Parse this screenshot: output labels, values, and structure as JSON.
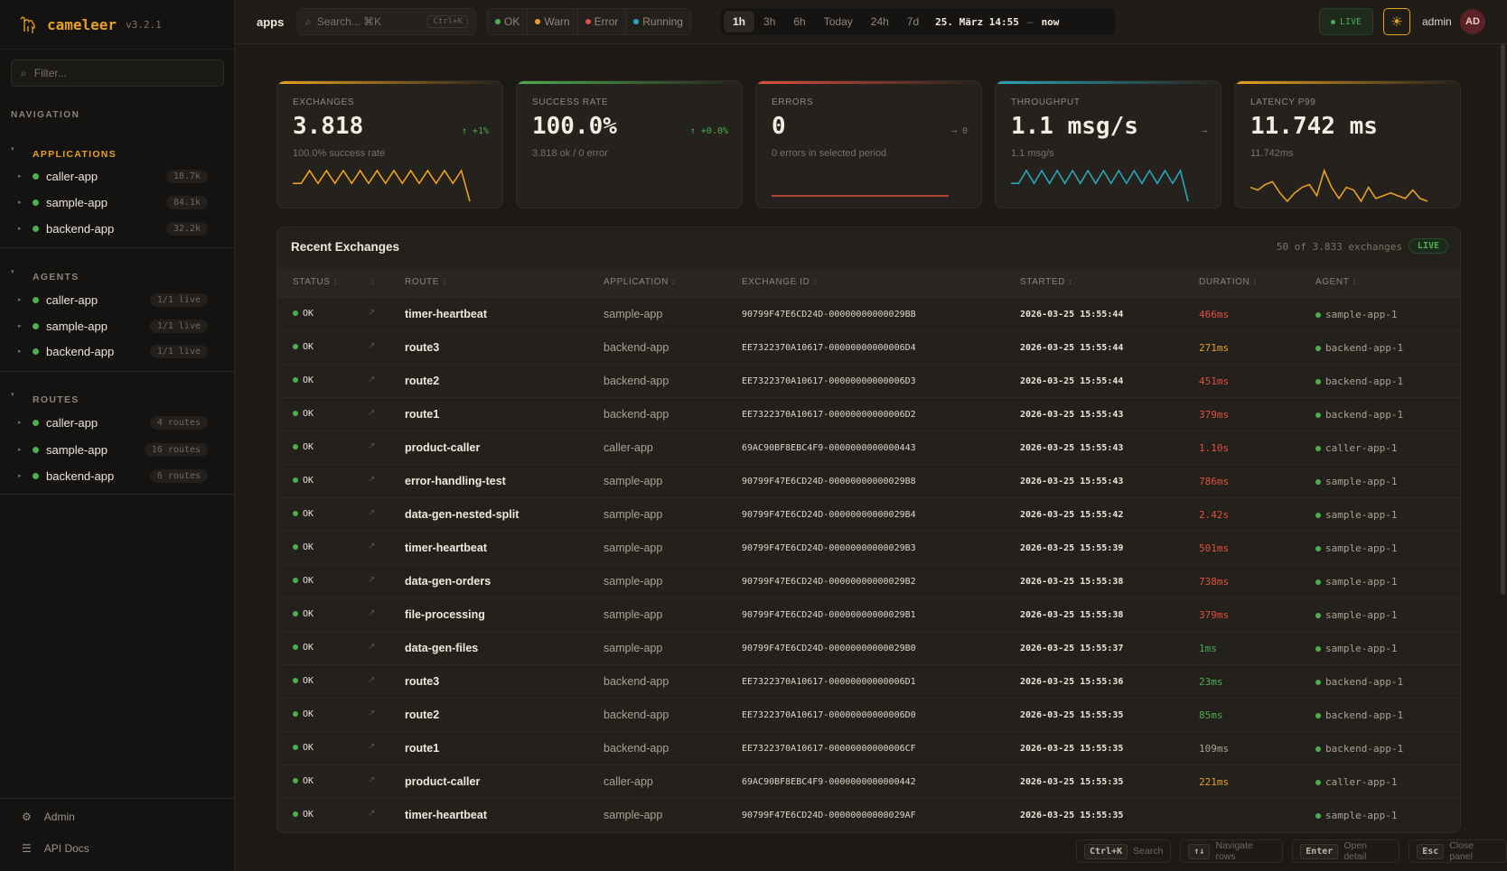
{
  "brand": {
    "name": "cameleer",
    "version": "v3.2.1"
  },
  "sidebar": {
    "filter_placeholder": "Filter...",
    "nav_title": "NAVIGATION",
    "groups": [
      {
        "title": "APPLICATIONS",
        "items": [
          {
            "label": "caller-app",
            "badge": "18.7k"
          },
          {
            "label": "sample-app",
            "badge": "84.1k"
          },
          {
            "label": "backend-app",
            "badge": "32.2k"
          }
        ]
      },
      {
        "title": "AGENTS",
        "items": [
          {
            "label": "caller-app",
            "badge": "1/1 live"
          },
          {
            "label": "sample-app",
            "badge": "1/1 live"
          },
          {
            "label": "backend-app",
            "badge": "1/1 live"
          }
        ]
      },
      {
        "title": "ROUTES",
        "items": [
          {
            "label": "caller-app",
            "badge": "4 routes"
          },
          {
            "label": "sample-app",
            "badge": "16 routes"
          },
          {
            "label": "backend-app",
            "badge": "6 routes"
          }
        ]
      }
    ],
    "footer": [
      {
        "label": "Admin",
        "icon": "gear-icon"
      },
      {
        "label": "API Docs",
        "icon": "menu-icon"
      }
    ]
  },
  "topbar": {
    "breadcrumb": "apps",
    "search_placeholder": "Search... ⌘K",
    "search_shortcut": "Ctrl+K",
    "status_filters": [
      {
        "label": "OK",
        "color": "#4caf50"
      },
      {
        "label": "Warn",
        "color": "#e8a020"
      },
      {
        "label": "Error",
        "color": "#e05040"
      },
      {
        "label": "Running",
        "color": "#2aa6b8"
      }
    ],
    "time_ranges": [
      "1h",
      "3h",
      "6h",
      "Today",
      "24h",
      "7d"
    ],
    "active_range": "1h",
    "range_from": "25. März 14:55",
    "range_sep": "–",
    "range_to": "now",
    "live": "LIVE",
    "user": "admin",
    "avatar": "AD"
  },
  "kpis": [
    {
      "label": "EXCHANGES",
      "value": "3.818",
      "trend": "↑ +1%",
      "trend_color": "#4caf50",
      "sub": "100.0% success rate",
      "color": "#e8a020",
      "spark": [
        4,
        4,
        9,
        4,
        9,
        4,
        9,
        4,
        9,
        4,
        9,
        4,
        9,
        4,
        9,
        4,
        9,
        4,
        9,
        4,
        9,
        -3
      ]
    },
    {
      "label": "SUCCESS RATE",
      "value": "100.0%",
      "trend": "↑ +0.0%",
      "trend_color": "#4caf50",
      "sub": "3.818 ok / 0 error",
      "color": "#4caf50",
      "spark": []
    },
    {
      "label": "ERRORS",
      "value": "0",
      "trend": "→ 0",
      "trend_color": "#77706a",
      "sub": "0 errors in selected period",
      "color": "#e05040",
      "spark": [
        0,
        0
      ]
    },
    {
      "label": "THROUGHPUT",
      "value": "1.1 msg/s",
      "trend": "→",
      "trend_color": "#77706a",
      "sub": "1.1 msg/s",
      "color": "#2aa6b8",
      "spark": [
        4,
        4,
        9,
        4,
        9,
        4,
        9,
        4,
        9,
        4,
        9,
        4,
        9,
        4,
        9,
        4,
        9,
        4,
        9,
        4,
        9,
        4,
        9,
        -3
      ]
    },
    {
      "label": "LATENCY P99",
      "value": "11.742 ms",
      "trend": "",
      "trend_color": "#77706a",
      "sub": "11.742ms",
      "color": "#e8a020",
      "spark": [
        5,
        4,
        6,
        7,
        3,
        0,
        3,
        5,
        6,
        2,
        11,
        5,
        1,
        5,
        4,
        0,
        5,
        1,
        2,
        3,
        2,
        1,
        4,
        1,
        0
      ]
    }
  ],
  "exchanges": {
    "title": "Recent Exchanges",
    "count": "50 of 3.833 exchanges",
    "live": "LIVE",
    "columns": [
      "STATUS",
      "",
      "ROUTE",
      "APPLICATION",
      "EXCHANGE ID",
      "STARTED",
      "DURATION",
      "AGENT"
    ],
    "rows": [
      {
        "status": "OK",
        "route": "timer-heartbeat",
        "app": "sample-app",
        "id": "90799F47E6CD24D-00000000000029BB",
        "started": "2026-03-25 15:55:44",
        "duration": "466ms",
        "level": "slow",
        "agent": "sample-app-1"
      },
      {
        "status": "OK",
        "route": "route3",
        "app": "backend-app",
        "id": "EE7322370A10617-00000000000006D4",
        "started": "2026-03-25 15:55:44",
        "duration": "271ms",
        "level": "warn",
        "agent": "backend-app-1"
      },
      {
        "status": "OK",
        "route": "route2",
        "app": "backend-app",
        "id": "EE7322370A10617-00000000000006D3",
        "started": "2026-03-25 15:55:44",
        "duration": "451ms",
        "level": "slow",
        "agent": "backend-app-1"
      },
      {
        "status": "OK",
        "route": "route1",
        "app": "backend-app",
        "id": "EE7322370A10617-00000000000006D2",
        "started": "2026-03-25 15:55:43",
        "duration": "379ms",
        "level": "slow",
        "agent": "backend-app-1"
      },
      {
        "status": "OK",
        "route": "product-caller",
        "app": "caller-app",
        "id": "69AC90BF8EBC4F9-0000000000000443",
        "started": "2026-03-25 15:55:43",
        "duration": "1.10s",
        "level": "slow",
        "agent": "caller-app-1"
      },
      {
        "status": "OK",
        "route": "error-handling-test",
        "app": "sample-app",
        "id": "90799F47E6CD24D-00000000000029B8",
        "started": "2026-03-25 15:55:43",
        "duration": "786ms",
        "level": "slow",
        "agent": "sample-app-1"
      },
      {
        "status": "OK",
        "route": "data-gen-nested-split",
        "app": "sample-app",
        "id": "90799F47E6CD24D-00000000000029B4",
        "started": "2026-03-25 15:55:42",
        "duration": "2.42s",
        "level": "slow",
        "agent": "sample-app-1"
      },
      {
        "status": "OK",
        "route": "timer-heartbeat",
        "app": "sample-app",
        "id": "90799F47E6CD24D-00000000000029B3",
        "started": "2026-03-25 15:55:39",
        "duration": "501ms",
        "level": "slow",
        "agent": "sample-app-1"
      },
      {
        "status": "OK",
        "route": "data-gen-orders",
        "app": "sample-app",
        "id": "90799F47E6CD24D-00000000000029B2",
        "started": "2026-03-25 15:55:38",
        "duration": "738ms",
        "level": "slow",
        "agent": "sample-app-1"
      },
      {
        "status": "OK",
        "route": "file-processing",
        "app": "sample-app",
        "id": "90799F47E6CD24D-00000000000029B1",
        "started": "2026-03-25 15:55:38",
        "duration": "379ms",
        "level": "slow",
        "agent": "sample-app-1"
      },
      {
        "status": "OK",
        "route": "data-gen-files",
        "app": "sample-app",
        "id": "90799F47E6CD24D-00000000000029B0",
        "started": "2026-03-25 15:55:37",
        "duration": "1ms",
        "level": "fast",
        "agent": "sample-app-1"
      },
      {
        "status": "OK",
        "route": "route3",
        "app": "backend-app",
        "id": "EE7322370A10617-00000000000006D1",
        "started": "2026-03-25 15:55:36",
        "duration": "23ms",
        "level": "fast",
        "agent": "backend-app-1"
      },
      {
        "status": "OK",
        "route": "route2",
        "app": "backend-app",
        "id": "EE7322370A10617-00000000000006D0",
        "started": "2026-03-25 15:55:35",
        "duration": "85ms",
        "level": "fast",
        "agent": "backend-app-1"
      },
      {
        "status": "OK",
        "route": "route1",
        "app": "backend-app",
        "id": "EE7322370A10617-00000000000006CF",
        "started": "2026-03-25 15:55:35",
        "duration": "109ms",
        "level": "normal",
        "agent": "backend-app-1"
      },
      {
        "status": "OK",
        "route": "product-caller",
        "app": "caller-app",
        "id": "69AC90BF8EBC4F9-0000000000000442",
        "started": "2026-03-25 15:55:35",
        "duration": "221ms",
        "level": "warn",
        "agent": "caller-app-1"
      },
      {
        "status": "OK",
        "route": "timer-heartbeat",
        "app": "sample-app",
        "id": "90799F47E6CD24D-00000000000029AF",
        "started": "2026-03-25 15:55:35",
        "duration": "",
        "level": "normal",
        "agent": "sample-app-1"
      }
    ]
  },
  "duration_colors": {
    "fast": "#4caf50",
    "normal": "#a9a294",
    "warn": "#e8a020",
    "slow": "#e05040"
  },
  "hints": [
    {
      "key": "Ctrl+K",
      "label": "Search"
    },
    {
      "key": "↑↓",
      "label": "Navigate rows"
    },
    {
      "key": "Enter",
      "label": "Open detail"
    },
    {
      "key": "Esc",
      "label": "Close panel"
    }
  ]
}
